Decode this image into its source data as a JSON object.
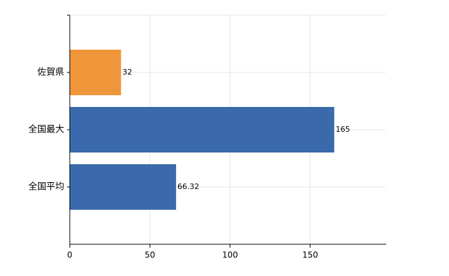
{
  "chart_data": {
    "type": "barh",
    "categories": [
      "佐賀県",
      "全国最大",
      "全国平均"
    ],
    "values": [
      32,
      165,
      66.32
    ],
    "colors": [
      "#f0963a",
      "#3a6aab",
      "#3a6aab"
    ],
    "xlim": [
      0,
      197.4
    ],
    "xticks": [
      0,
      50,
      100,
      150
    ],
    "grid": true
  }
}
